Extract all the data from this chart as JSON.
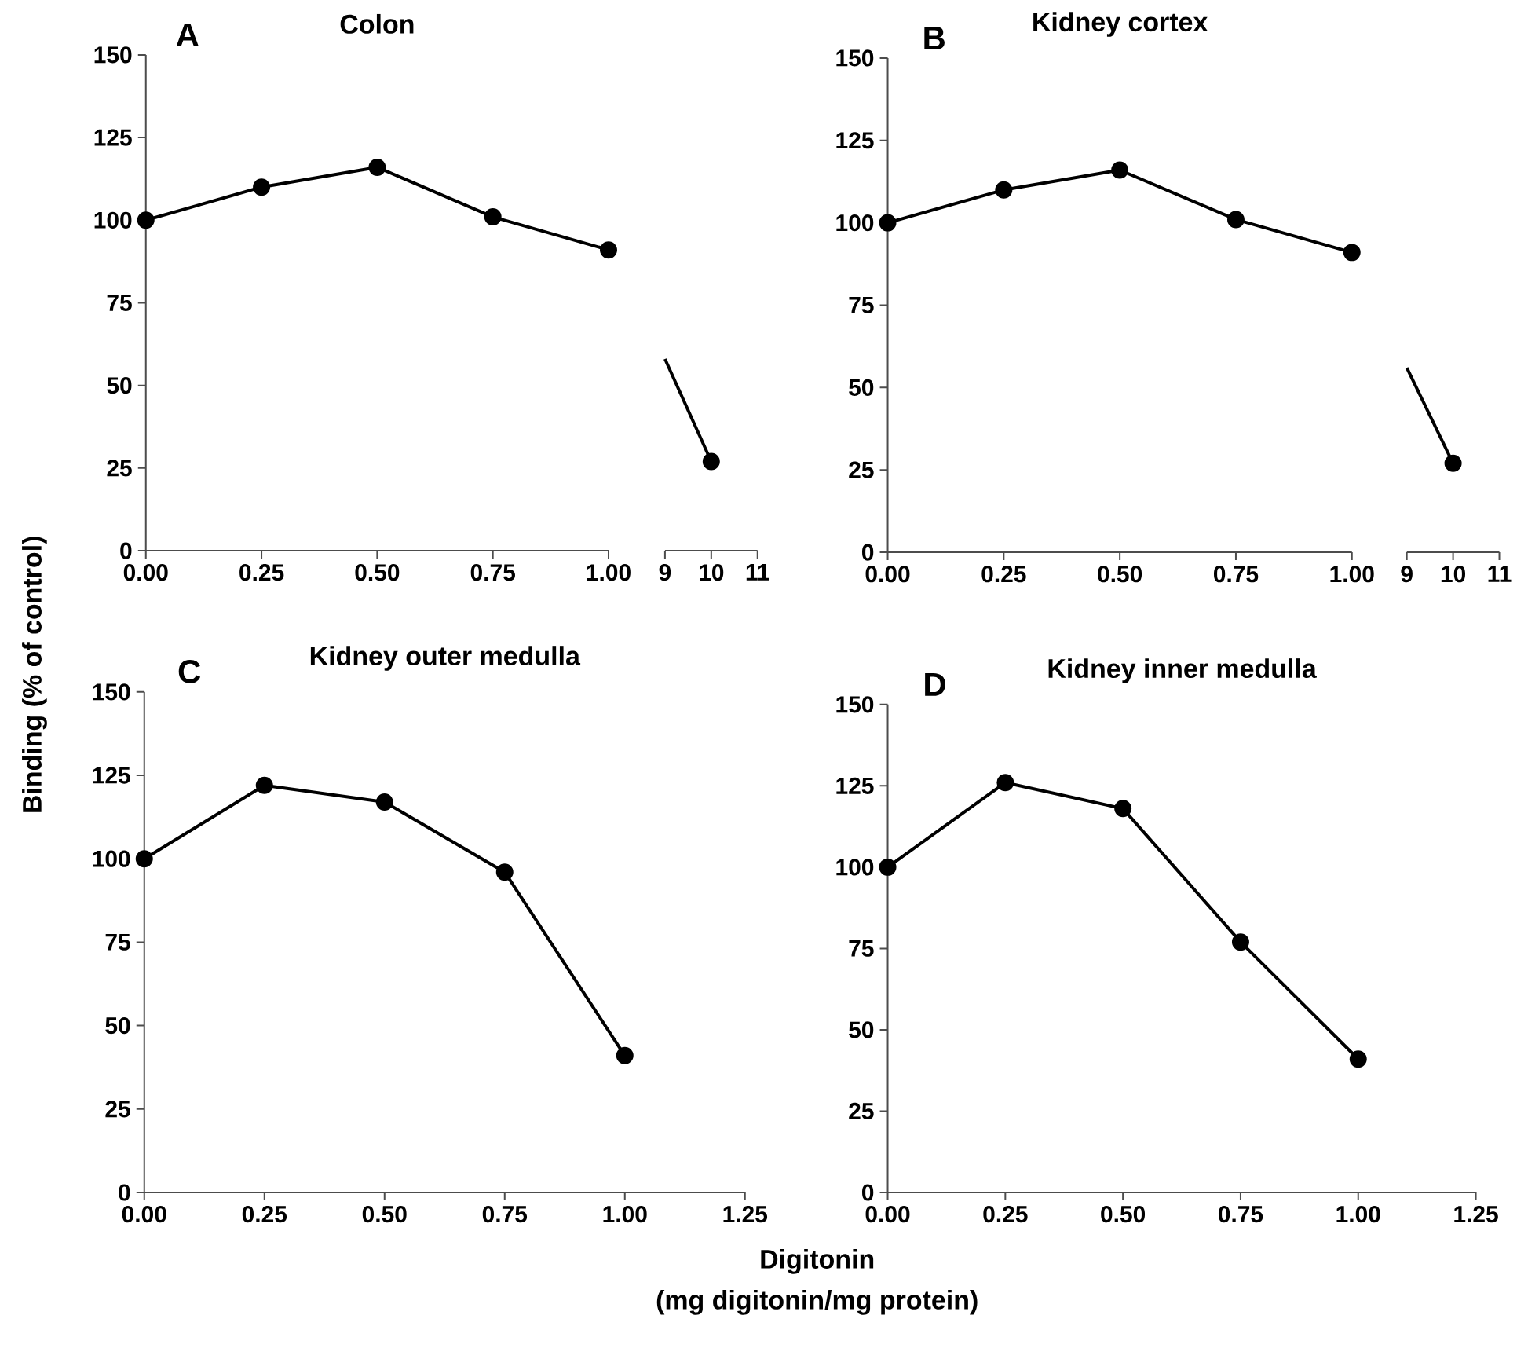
{
  "chart_data": [
    {
      "type": "line",
      "title": "Colon",
      "annotations": [
        "A"
      ],
      "x": [
        0,
        0.25,
        0.5,
        0.75,
        1
      ],
      "xlim": [
        0,
        1
      ],
      "ylim": [
        0,
        150
      ],
      "xticks": [
        {
          "value": 0,
          "label": "0.00"
        },
        {
          "value": 0.25,
          "label": "0.25"
        },
        {
          "value": 0.5,
          "label": "0.50"
        },
        {
          "value": 0.75,
          "label": "0.75"
        },
        {
          "value": 1,
          "label": "1.00"
        }
      ],
      "yticks": [
        0,
        25,
        50,
        75,
        100,
        125,
        150
      ],
      "marker": "circle",
      "series": [
        {
          "color": "#000000",
          "values": [
            100,
            110,
            116,
            101,
            91
          ]
        }
      ]
    },
    {
      "type": "line",
      "x": [
        9,
        10
      ],
      "xlim": [
        9,
        11
      ],
      "ylim": [
        0,
        150
      ],
      "xticks": [
        9,
        10,
        11
      ],
      "tick_labels": "x",
      "series": [
        {
          "color": "#000000",
          "values": [
            58,
            27
          ]
        },
        {
          "type": "scatter",
          "color": "#000000",
          "values": [
            null,
            27
          ],
          "marker": "circle"
        }
      ]
    },
    {
      "type": "line",
      "title": "Kidney cortex",
      "annotations": [
        "B"
      ],
      "x": [
        0,
        0.25,
        0.5,
        0.75,
        1
      ],
      "xlim": [
        0,
        1
      ],
      "ylim": [
        0,
        150
      ],
      "xticks": [
        {
          "value": 0,
          "label": "0.00"
        },
        {
          "value": 0.25,
          "label": "0.25"
        },
        {
          "value": 0.5,
          "label": "0.50"
        },
        {
          "value": 0.75,
          "label": "0.75"
        },
        {
          "value": 1,
          "label": "1.00"
        }
      ],
      "yticks": [
        0,
        25,
        50,
        75,
        100,
        125,
        150
      ],
      "marker": "circle",
      "series": [
        {
          "color": "#000000",
          "values": [
            100,
            110,
            116,
            101,
            91
          ]
        }
      ]
    },
    {
      "type": "line",
      "x": [
        9,
        10
      ],
      "xlim": [
        9,
        11
      ],
      "ylim": [
        0,
        150
      ],
      "xticks": [
        9,
        10,
        11
      ],
      "tick_labels": "x",
      "series": [
        {
          "color": "#000000",
          "values": [
            56,
            27
          ]
        },
        {
          "type": "scatter",
          "color": "#000000",
          "values": [
            null,
            27
          ],
          "marker": "circle"
        }
      ]
    },
    {
      "type": "line",
      "title": "Kidney outer medulla",
      "annotations": [
        "C",
        "(mg digitonin/mg protein)"
      ],
      "ylabel": "Binding (% of control)",
      "xlabel": "Digitonin",
      "x": [
        0,
        0.25,
        0.5,
        0.75,
        1
      ],
      "xlim": [
        0,
        1.25
      ],
      "ylim": [
        0,
        150
      ],
      "xticks": [
        {
          "value": 0,
          "label": "0.00"
        },
        {
          "value": 0.25,
          "label": "0.25"
        },
        {
          "value": 0.5,
          "label": "0.50"
        },
        {
          "value": 0.75,
          "label": "0.75"
        },
        {
          "value": 1,
          "label": "1.00"
        },
        {
          "value": 1.25,
          "label": "1.25"
        }
      ],
      "yticks": [
        0,
        25,
        50,
        75,
        100,
        125,
        150
      ],
      "marker": "circle",
      "series": [
        {
          "color": "#000000",
          "values": [
            100,
            122,
            117,
            96,
            41
          ]
        }
      ]
    },
    {
      "type": "line",
      "title": "Kidney inner medulla",
      "annotations": [
        "D"
      ],
      "x": [
        0,
        0.25,
        0.5,
        0.75,
        1
      ],
      "xlim": [
        0,
        1.25
      ],
      "ylim": [
        0,
        150
      ],
      "xticks": [
        {
          "value": 0,
          "label": "0.00"
        },
        {
          "value": 0.25,
          "label": "0.25"
        },
        {
          "value": 0.5,
          "label": "0.50"
        },
        {
          "value": 0.75,
          "label": "0.75"
        },
        {
          "value": 1,
          "label": "1.00"
        },
        {
          "value": 1.25,
          "label": "1.25"
        }
      ],
      "yticks": [
        0,
        25,
        50,
        75,
        100,
        125,
        150
      ],
      "marker": "circle",
      "series": [
        {
          "color": "#000000",
          "values": [
            100,
            126,
            118,
            77,
            41
          ]
        }
      ]
    }
  ]
}
